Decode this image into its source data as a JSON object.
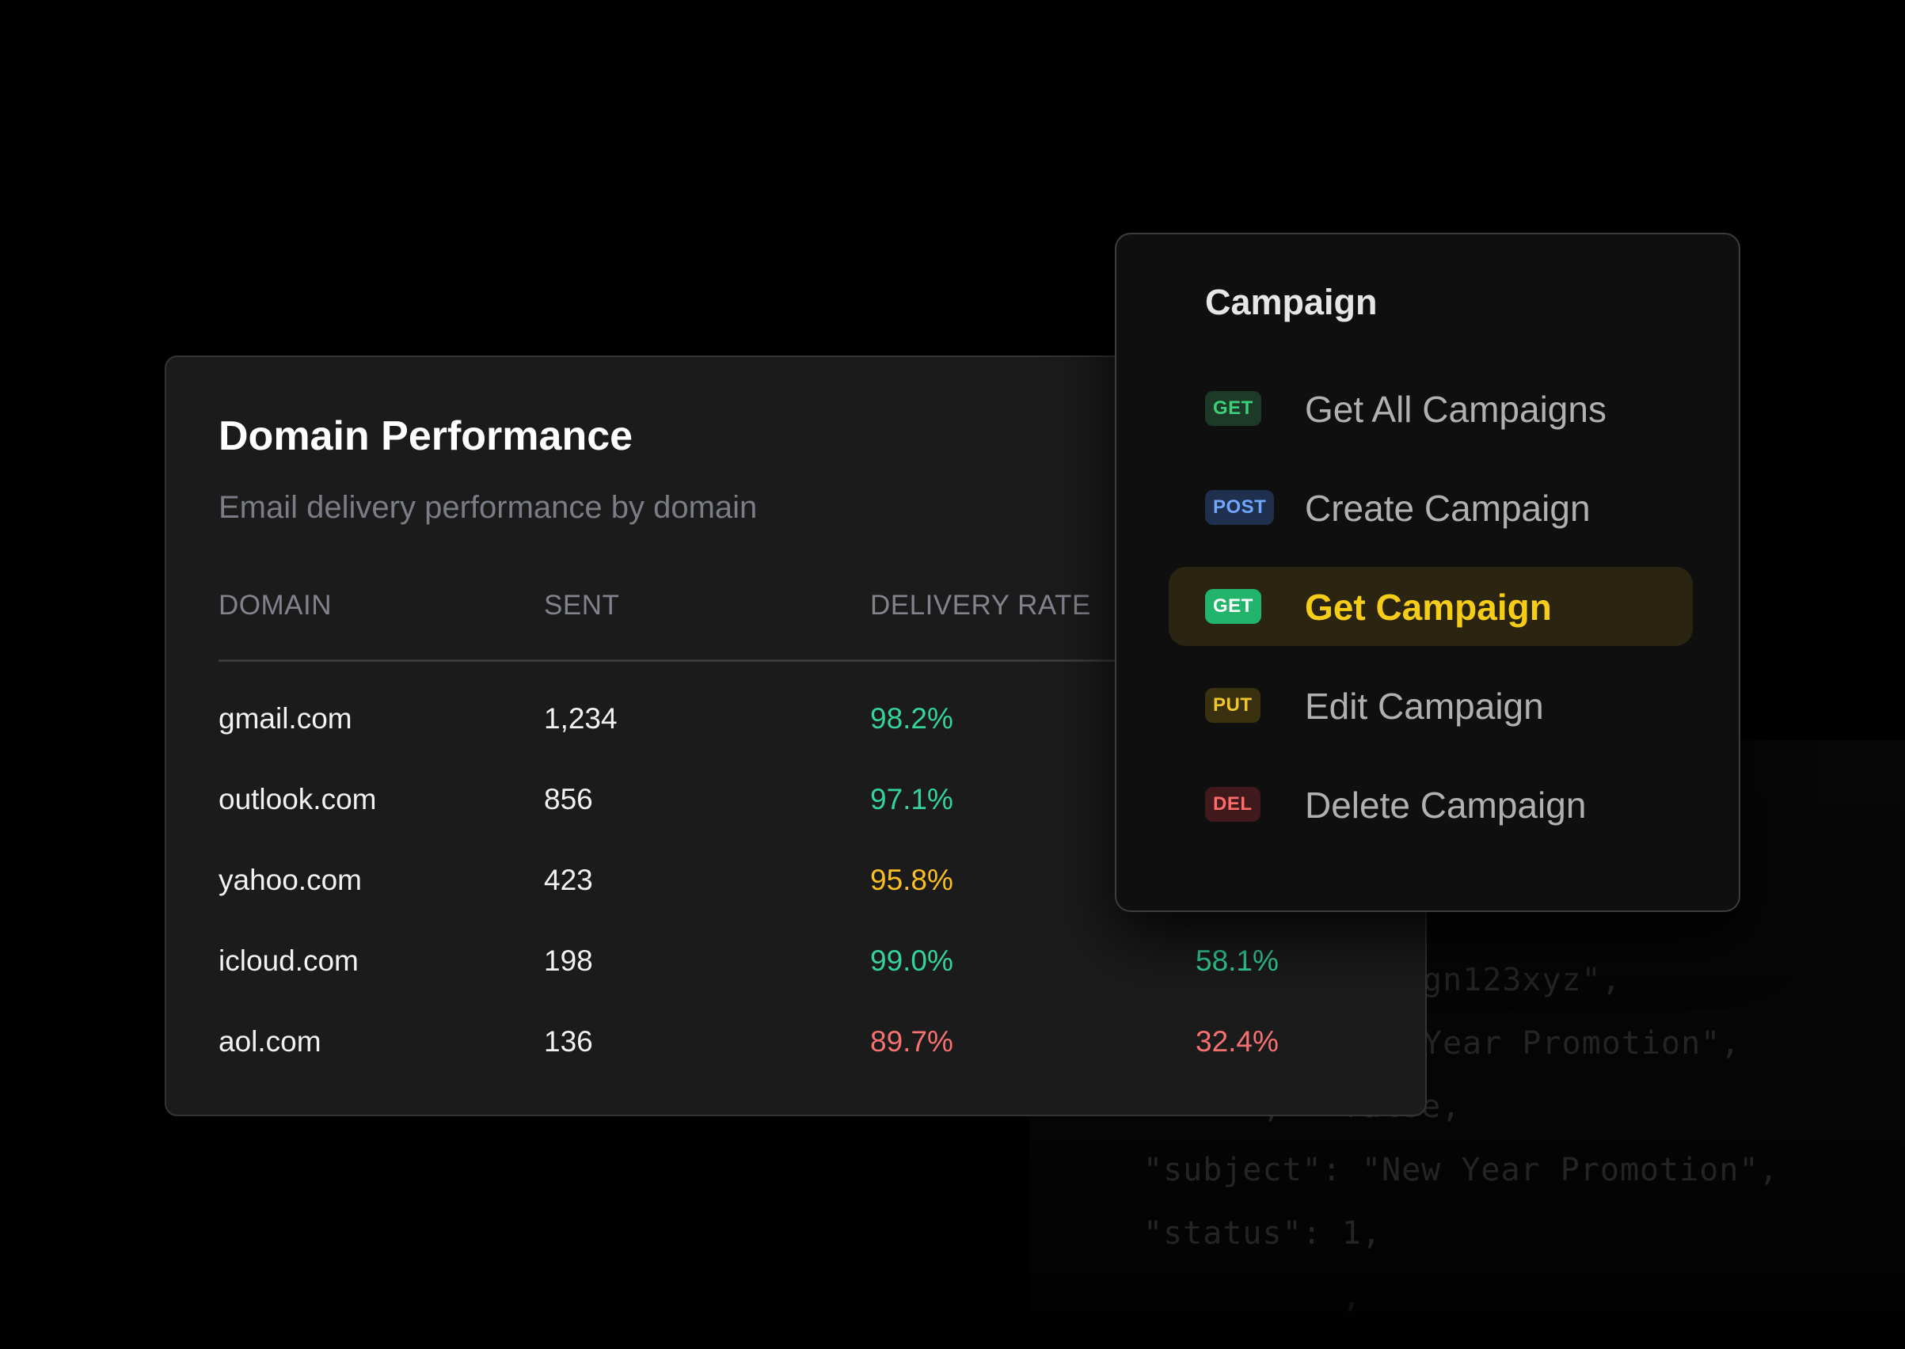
{
  "colors": {
    "good": "#34d399",
    "warning": "#fbbf24",
    "bad": "#f87171",
    "accent_active": "#f5cc18"
  },
  "background_code": {
    "lines": [
      "gn123xyz\",",
      "Year Promotion\",",
      "      ,   false,",
      "\"subject\": \"New Year Promotion\",",
      "\"status\": 1,",
      "          ,"
    ]
  },
  "domain_performance": {
    "title": "Domain Performance",
    "subtitle": "Email delivery performance by domain",
    "columns": [
      "DOMAIN",
      "SENT",
      "DELIVERY RATE"
    ],
    "rows": [
      {
        "domain": "gmail.com",
        "sent": "1,234",
        "delivery_rate": "98.2%",
        "delivery_status": "good",
        "extra": "",
        "extra_status": "good"
      },
      {
        "domain": "outlook.com",
        "sent": "856",
        "delivery_rate": "97.1%",
        "delivery_status": "good",
        "extra": "",
        "extra_status": "good"
      },
      {
        "domain": "yahoo.com",
        "sent": "423",
        "delivery_rate": "95.8%",
        "delivery_status": "warning",
        "extra": "",
        "extra_status": "warning"
      },
      {
        "domain": "icloud.com",
        "sent": "198",
        "delivery_rate": "99.0%",
        "delivery_status": "good",
        "extra": "58.1%",
        "extra_status": "good"
      },
      {
        "domain": "aol.com",
        "sent": "136",
        "delivery_rate": "89.7%",
        "delivery_status": "bad",
        "extra": "32.4%",
        "extra_status": "bad"
      }
    ]
  },
  "campaign_menu": {
    "title": "Campaign",
    "items": [
      {
        "method": "GET",
        "label": "Get All Campaigns",
        "active": false,
        "badge_bg": "#1c3a27",
        "badge_fg": "#3ecf7a"
      },
      {
        "method": "POST",
        "label": "Create Campaign",
        "active": false,
        "badge_bg": "#1f2f4e",
        "badge_fg": "#6fa6ff"
      },
      {
        "method": "GET",
        "label": "Get Campaign",
        "active": true,
        "badge_bg": "#22b46a",
        "badge_fg": "#ffffff"
      },
      {
        "method": "PUT",
        "label": "Edit Campaign",
        "active": false,
        "badge_bg": "#3a3110",
        "badge_fg": "#f2c629"
      },
      {
        "method": "DEL",
        "label": "Delete Campaign",
        "active": false,
        "badge_bg": "#40191c",
        "badge_fg": "#ff6b6b"
      }
    ]
  }
}
